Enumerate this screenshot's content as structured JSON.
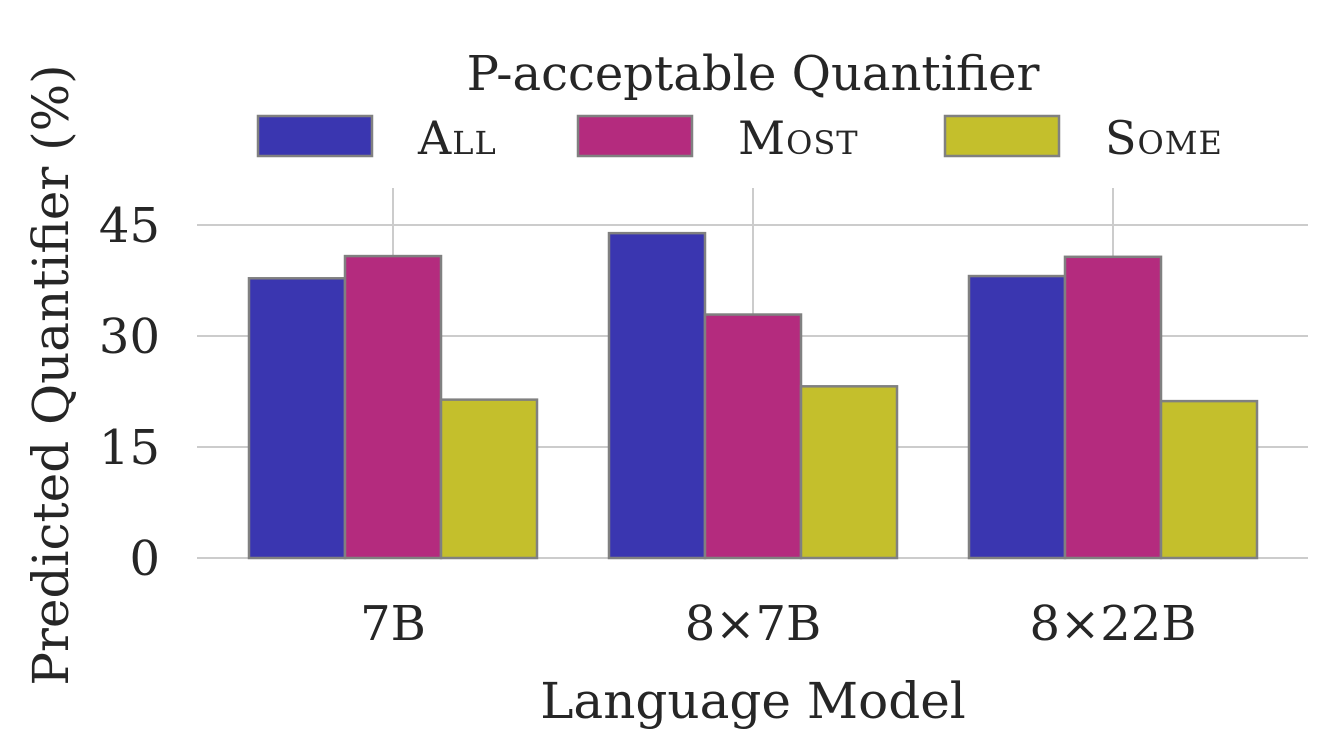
{
  "chart_data": {
    "type": "bar",
    "title": "",
    "xlabel": "Language Model",
    "ylabel": "Predicted Quantifier (%)",
    "categories": [
      "7B",
      "8×7B",
      "8×22B"
    ],
    "series": [
      {
        "name": "All",
        "values": [
          37.8,
          43.9,
          38.1
        ],
        "color": "#3a36b0"
      },
      {
        "name": "Most",
        "values": [
          40.8,
          32.9,
          40.7
        ],
        "color": "#b42b7e"
      },
      {
        "name": "Some",
        "values": [
          21.4,
          23.2,
          21.2
        ],
        "color": "#c4bf2c"
      }
    ],
    "yticks": [
      0,
      15,
      30,
      45
    ],
    "ylim": [
      0,
      50
    ],
    "grid": true,
    "legend": {
      "title": "P-acceptable Quantifier",
      "placement": "top-center"
    }
  }
}
